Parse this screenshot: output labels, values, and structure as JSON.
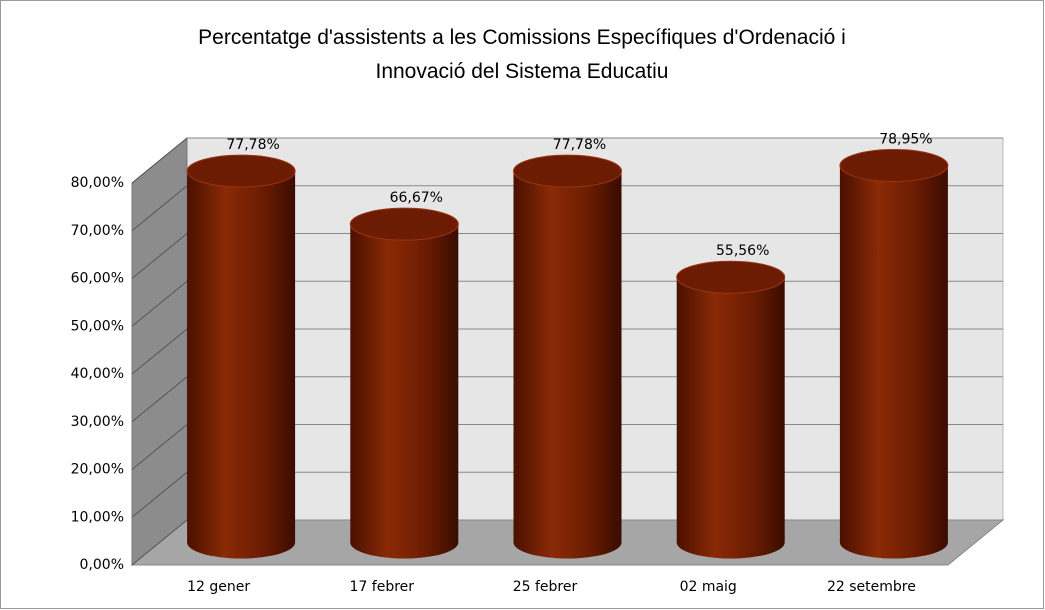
{
  "chart_data": {
    "type": "bar",
    "title": "Percentatge d'assistents a les Comissions Específiques d'Ordenació i Innovació del Sistema Educatiu",
    "categories": [
      "12 gener",
      "17 febrer",
      "25 febrer",
      "02 maig",
      "22 setembre"
    ],
    "values": [
      77.78,
      66.67,
      77.78,
      55.56,
      78.95
    ],
    "value_labels": [
      "77,78%",
      "66,67%",
      "77,78%",
      "55,56%",
      "78,95%"
    ],
    "color": "#6b1c02",
    "ylim": [
      0,
      80
    ],
    "yticks": [
      {
        "value": 0,
        "label": "0,00%"
      },
      {
        "value": 10,
        "label": "10,00%"
      },
      {
        "value": 20,
        "label": "20,00%"
      },
      {
        "value": 30,
        "label": "30,00%"
      },
      {
        "value": 40,
        "label": "40,00%"
      },
      {
        "value": 50,
        "label": "50,00%"
      },
      {
        "value": 60,
        "label": "60,00%"
      },
      {
        "value": 70,
        "label": "70,00%"
      },
      {
        "value": 80,
        "label": "80,00%"
      }
    ],
    "grid": true
  }
}
